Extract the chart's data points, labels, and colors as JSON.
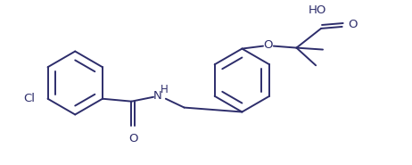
{
  "line_color": "#2d2d6b",
  "background": "#ffffff",
  "line_width": 1.4,
  "font_size": 9.5,
  "label_Cl": "Cl",
  "label_O_carbonyl": "O",
  "label_O_ether": "O",
  "label_O_acid": "O",
  "label_NH": "H",
  "label_HO": "HO",
  "label_N": "N"
}
